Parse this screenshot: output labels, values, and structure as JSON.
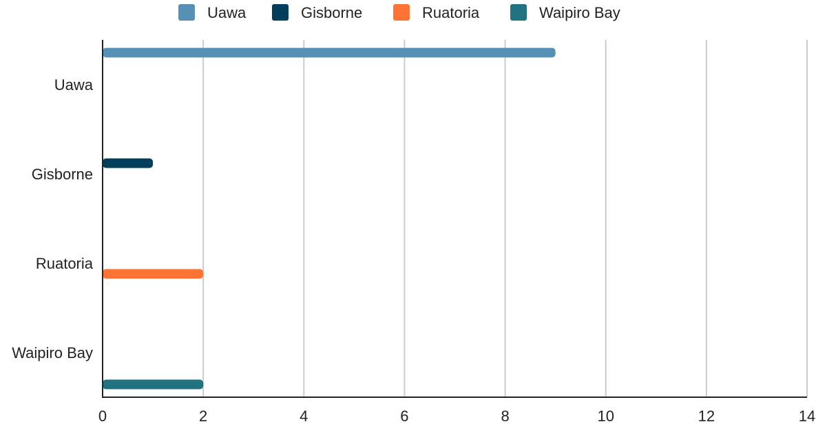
{
  "chart_data": {
    "type": "bar",
    "orientation": "horizontal",
    "categories": [
      "Uawa",
      "Gisborne",
      "Ruatoria",
      "Waipiro Bay"
    ],
    "series": [
      {
        "name": "Uawa",
        "color": "#5691b5",
        "values": [
          9,
          null,
          null,
          null
        ]
      },
      {
        "name": "Gisborne",
        "color": "#003f5c",
        "values": [
          null,
          1,
          null,
          null
        ]
      },
      {
        "name": "Ruatoria",
        "color": "#ff7434",
        "values": [
          null,
          null,
          2,
          null
        ]
      },
      {
        "name": "Waipiro Bay",
        "color": "#20737f",
        "values": [
          null,
          null,
          null,
          2
        ]
      }
    ],
    "title": "",
    "xlabel": "",
    "ylabel": "",
    "xlim": [
      0,
      14
    ],
    "x_ticks": [
      0,
      2,
      4,
      6,
      8,
      10,
      12,
      14
    ],
    "grid": true,
    "legend_position": "top"
  }
}
